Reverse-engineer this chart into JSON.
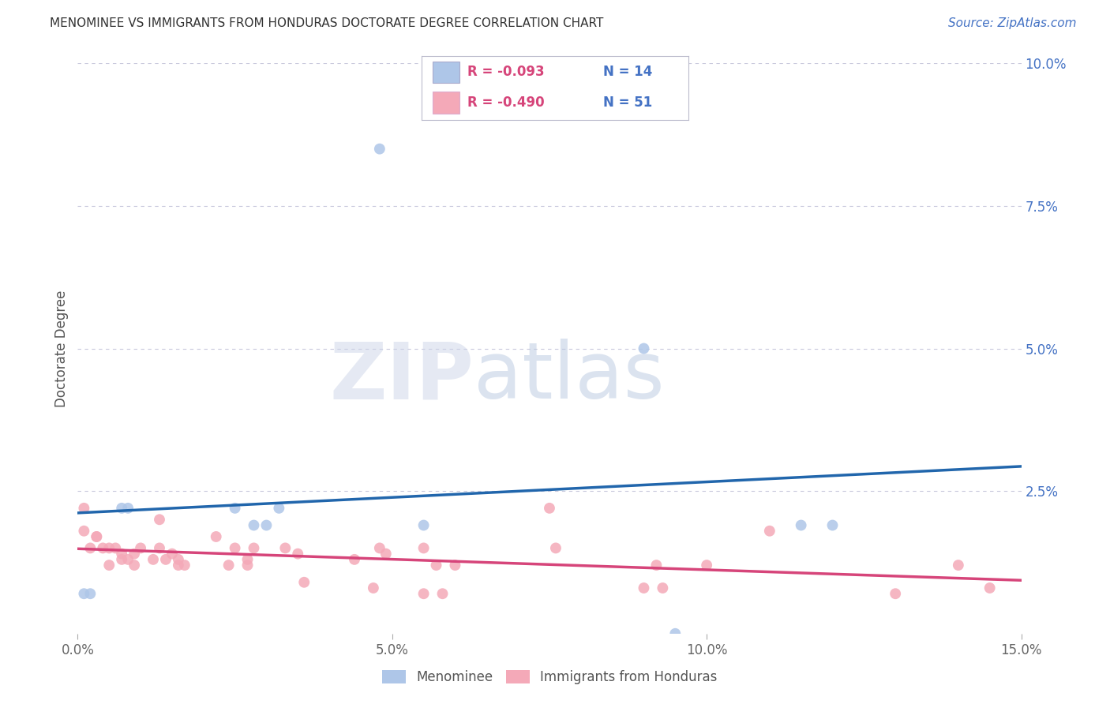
{
  "title": "MENOMINEE VS IMMIGRANTS FROM HONDURAS DOCTORATE DEGREE CORRELATION CHART",
  "source": "Source: ZipAtlas.com",
  "ylabel": "Doctorate Degree",
  "xlim": [
    0.0,
    0.15
  ],
  "ylim": [
    0.0,
    0.1
  ],
  "xticks": [
    0.0,
    0.05,
    0.1,
    0.15
  ],
  "xticklabels": [
    "0.0%",
    "5.0%",
    "10.0%",
    "15.0%"
  ],
  "yticks_right": [
    0.0,
    0.025,
    0.05,
    0.075,
    0.1
  ],
  "yticklabels_right": [
    "",
    "2.5%",
    "5.0%",
    "7.5%",
    "10.0%"
  ],
  "background_color": "#ffffff",
  "menominee_color": "#aec6e8",
  "honduras_color": "#f4a9b8",
  "trendline_menominee_color": "#2166ac",
  "trendline_honduras_color": "#d6457a",
  "legend_r_menominee": "R = -0.093",
  "legend_n_menominee": "N = 14",
  "legend_r_honduras": "R = -0.490",
  "legend_n_honduras": "N = 51",
  "menominee_x": [
    0.001,
    0.002,
    0.007,
    0.008,
    0.025,
    0.028,
    0.03,
    0.032,
    0.048,
    0.055,
    0.09,
    0.095,
    0.115,
    0.12
  ],
  "menominee_y": [
    0.007,
    0.007,
    0.022,
    0.022,
    0.022,
    0.019,
    0.019,
    0.022,
    0.085,
    0.019,
    0.05,
    0.0,
    0.019,
    0.019
  ],
  "honduras_x": [
    0.001,
    0.001,
    0.002,
    0.003,
    0.003,
    0.004,
    0.005,
    0.005,
    0.006,
    0.007,
    0.007,
    0.008,
    0.009,
    0.009,
    0.01,
    0.012,
    0.013,
    0.013,
    0.014,
    0.015,
    0.016,
    0.016,
    0.017,
    0.022,
    0.024,
    0.025,
    0.027,
    0.027,
    0.028,
    0.033,
    0.035,
    0.036,
    0.044,
    0.047,
    0.048,
    0.049,
    0.055,
    0.055,
    0.057,
    0.058,
    0.06,
    0.075,
    0.076,
    0.09,
    0.092,
    0.093,
    0.1,
    0.11,
    0.13,
    0.14,
    0.145
  ],
  "honduras_y": [
    0.022,
    0.018,
    0.015,
    0.017,
    0.017,
    0.015,
    0.015,
    0.012,
    0.015,
    0.014,
    0.013,
    0.013,
    0.014,
    0.012,
    0.015,
    0.013,
    0.02,
    0.015,
    0.013,
    0.014,
    0.013,
    0.012,
    0.012,
    0.017,
    0.012,
    0.015,
    0.012,
    0.013,
    0.015,
    0.015,
    0.014,
    0.009,
    0.013,
    0.008,
    0.015,
    0.014,
    0.015,
    0.007,
    0.012,
    0.007,
    0.012,
    0.022,
    0.015,
    0.008,
    0.012,
    0.008,
    0.012,
    0.018,
    0.007,
    0.012,
    0.008
  ],
  "watermark_zip": "ZIP",
  "watermark_atlas": "atlas",
  "grid_color": "#c8c8dc",
  "marker_size": 100,
  "title_fontsize": 11,
  "source_fontsize": 11,
  "ylabel_fontsize": 12,
  "tick_fontsize": 12,
  "legend_fontsize": 12
}
